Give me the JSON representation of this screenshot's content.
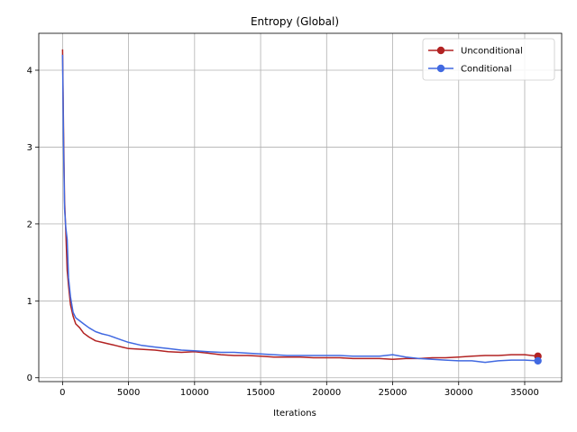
{
  "chart_data": {
    "type": "line",
    "title": "Entropy (Global)",
    "xlabel": "Iterations",
    "ylabel": "",
    "xlim": [
      -1800,
      37800
    ],
    "ylim": [
      -0.05,
      4.48
    ],
    "xticks": [
      0,
      5000,
      10000,
      15000,
      20000,
      25000,
      30000,
      35000
    ],
    "yticks": [
      0,
      1,
      2,
      3,
      4
    ],
    "grid": true,
    "legend_position": "top-right",
    "series": [
      {
        "name": "Unconditional",
        "color": "#b22222",
        "final_marker": true,
        "x": [
          0,
          80,
          150,
          250,
          350,
          450,
          600,
          800,
          1000,
          1300,
          1600,
          2000,
          2500,
          3000,
          3500,
          4000,
          4500,
          5000,
          6000,
          7000,
          8000,
          9000,
          10000,
          11000,
          12000,
          13000,
          14000,
          15000,
          16000,
          17000,
          18000,
          19000,
          20000,
          21000,
          22000,
          23000,
          24000,
          25000,
          26000,
          27000,
          28000,
          29000,
          30000,
          31000,
          32000,
          33000,
          34000,
          35000,
          36000
        ],
        "y": [
          4.27,
          3.2,
          2.3,
          1.9,
          1.4,
          1.2,
          0.95,
          0.8,
          0.7,
          0.65,
          0.58,
          0.53,
          0.48,
          0.46,
          0.44,
          0.42,
          0.4,
          0.38,
          0.37,
          0.36,
          0.34,
          0.33,
          0.34,
          0.32,
          0.3,
          0.29,
          0.29,
          0.28,
          0.27,
          0.27,
          0.27,
          0.26,
          0.26,
          0.26,
          0.25,
          0.25,
          0.25,
          0.24,
          0.25,
          0.25,
          0.26,
          0.26,
          0.27,
          0.28,
          0.29,
          0.29,
          0.3,
          0.3,
          0.28
        ]
      },
      {
        "name": "Conditional",
        "color": "#4169e1",
        "final_marker": true,
        "x": [
          0,
          80,
          150,
          250,
          350,
          450,
          600,
          800,
          1000,
          1300,
          1600,
          2000,
          2500,
          3000,
          3500,
          4000,
          4500,
          5000,
          6000,
          7000,
          8000,
          9000,
          10000,
          11000,
          12000,
          13000,
          14000,
          15000,
          16000,
          17000,
          18000,
          19000,
          20000,
          21000,
          22000,
          23000,
          24000,
          25000,
          26000,
          27000,
          28000,
          29000,
          30000,
          31000,
          32000,
          33000,
          34000,
          35000,
          36000
        ],
        "y": [
          4.2,
          3.0,
          2.2,
          1.95,
          1.8,
          1.3,
          1.05,
          0.85,
          0.78,
          0.74,
          0.7,
          0.65,
          0.6,
          0.57,
          0.55,
          0.52,
          0.49,
          0.46,
          0.42,
          0.4,
          0.38,
          0.36,
          0.35,
          0.34,
          0.33,
          0.33,
          0.32,
          0.31,
          0.3,
          0.29,
          0.29,
          0.29,
          0.29,
          0.29,
          0.28,
          0.28,
          0.28,
          0.3,
          0.27,
          0.25,
          0.24,
          0.23,
          0.22,
          0.22,
          0.2,
          0.22,
          0.23,
          0.23,
          0.22
        ]
      }
    ]
  }
}
